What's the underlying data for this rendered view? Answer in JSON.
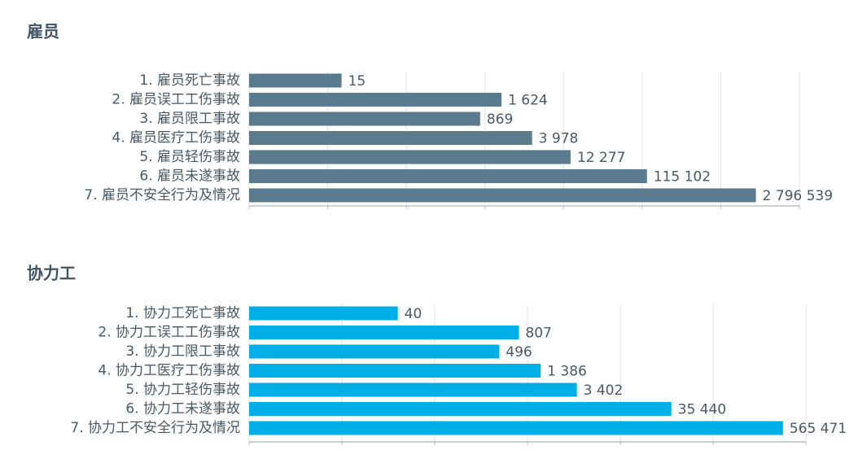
{
  "chart_data": [
    {
      "type": "hbar",
      "title": "雇员",
      "xscale": "log",
      "color": "#5a7a8e",
      "grid": true,
      "categories": [
        "1. 雇员死亡事故",
        "2. 雇员误工工伤事故",
        "3. 雇员限工事故",
        "4. 雇员医疗工伤事故",
        "5. 雇员轻伤事故",
        "6. 雇员未遂事故",
        "7. 雇员不安全行为及情况"
      ],
      "values": [
        15,
        1624,
        869,
        3978,
        12277,
        115102,
        2796539
      ],
      "value_labels": [
        "15",
        "1 624",
        "869",
        "3 978",
        "12 277",
        "115 102",
        "2 796 539"
      ],
      "xlim": [
        1,
        10000000
      ],
      "xticks": [
        1,
        10,
        100,
        1000,
        10000,
        100000,
        1000000,
        10000000
      ]
    },
    {
      "type": "hbar",
      "title": "协力工",
      "xscale": "log",
      "color": "#00aee8",
      "grid": true,
      "categories": [
        "1. 协力工死亡事故",
        "2. 协力工误工工伤事故",
        "3. 协力工限工事故",
        "4. 协力工医疗工伤事故",
        "5. 协力工轻伤事故",
        "6. 协力工未遂事故",
        "7. 协力工不安全行为及情况"
      ],
      "values": [
        40,
        807,
        496,
        1386,
        3402,
        35440,
        565471
      ],
      "value_labels": [
        "40",
        "807",
        "496",
        "1 386",
        "3 402",
        "35 440",
        "565 471"
      ],
      "xlim": [
        1,
        1000000
      ],
      "xticks": [
        1,
        10,
        100,
        1000,
        10000,
        100000,
        1000000
      ]
    }
  ]
}
